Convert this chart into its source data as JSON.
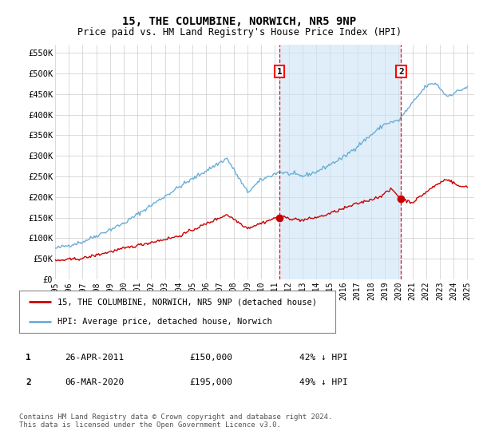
{
  "title": "15, THE COLUMBINE, NORWICH, NR5 9NP",
  "subtitle": "Price paid vs. HM Land Registry's House Price Index (HPI)",
  "ylabel_ticks": [
    "£0",
    "£50K",
    "£100K",
    "£150K",
    "£200K",
    "£250K",
    "£300K",
    "£350K",
    "£400K",
    "£450K",
    "£500K",
    "£550K"
  ],
  "ytick_values": [
    0,
    50000,
    100000,
    150000,
    200000,
    250000,
    300000,
    350000,
    400000,
    450000,
    500000,
    550000
  ],
  "ylim": [
    0,
    570000
  ],
  "xlim_start": 1995.0,
  "xlim_end": 2025.5,
  "hpi_color": "#6baed6",
  "price_color": "#cc0000",
  "marker1_year": 2011.32,
  "marker2_year": 2020.18,
  "marker1_price": 150000,
  "marker2_price": 195000,
  "legend_line1": "15, THE COLUMBINE, NORWICH, NR5 9NP (detached house)",
  "legend_line2": "HPI: Average price, detached house, Norwich",
  "table_row1": [
    "1",
    "26-APR-2011",
    "£150,000",
    "42% ↓ HPI"
  ],
  "table_row2": [
    "2",
    "06-MAR-2020",
    "£195,000",
    "49% ↓ HPI"
  ],
  "footnote": "Contains HM Land Registry data © Crown copyright and database right 2024.\nThis data is licensed under the Open Government Licence v3.0.",
  "plot_bg_color": "#ffffff",
  "figure_bg_color": "#ffffff",
  "grid_color": "#cccccc",
  "shade_color": "#cce4f7",
  "xticks": [
    1995,
    1996,
    1997,
    1998,
    1999,
    2000,
    2001,
    2002,
    2003,
    2004,
    2005,
    2006,
    2007,
    2008,
    2009,
    2010,
    2011,
    2012,
    2013,
    2014,
    2015,
    2016,
    2017,
    2018,
    2019,
    2020,
    2021,
    2022,
    2023,
    2024,
    2025
  ]
}
